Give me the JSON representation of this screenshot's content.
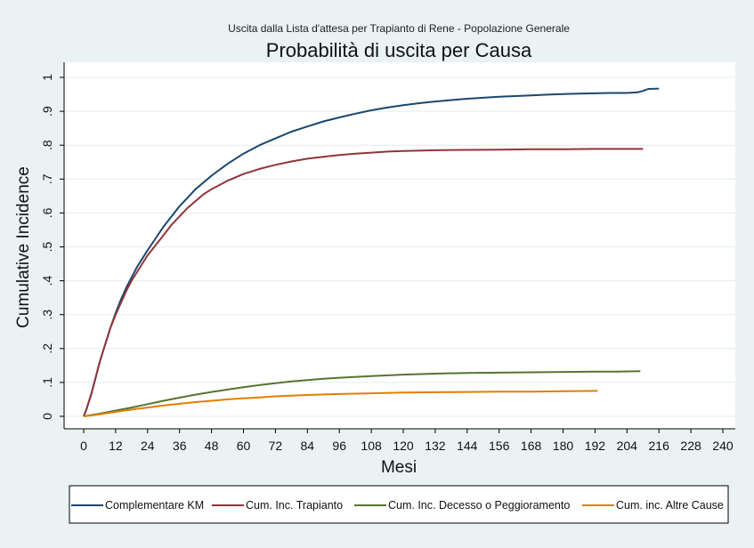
{
  "chart_data": {
    "type": "line",
    "subtitle": "Uscita dalla Lista d'attesa per Trapianto di Rene - Popolazione Generale",
    "title": "Probabilità di uscita per Causa",
    "xlabel": "Mesi",
    "ylabel": "Cumulative Incidence",
    "xlim": [
      0,
      240
    ],
    "ylim": [
      0,
      1
    ],
    "x_ticks": [
      0,
      12,
      24,
      36,
      48,
      60,
      72,
      84,
      96,
      108,
      120,
      132,
      144,
      156,
      168,
      180,
      192,
      204,
      216,
      228,
      240
    ],
    "y_ticks": [
      0,
      0.1,
      0.2,
      0.3,
      0.4,
      0.5,
      0.6,
      0.7,
      0.8,
      0.9,
      1
    ],
    "y_tick_labels": [
      "0",
      ".1",
      ".2",
      ".3",
      ".4",
      ".5",
      ".6",
      ".7",
      ".8",
      ".9",
      "1"
    ],
    "grid": true,
    "legend_position": "bottom",
    "series": [
      {
        "name": "Complementare KM",
        "color": "#1a476f",
        "x": [
          0,
          1,
          2,
          3,
          4,
          5,
          6,
          7,
          8,
          9,
          10,
          12,
          14,
          16,
          18,
          20,
          22,
          24,
          27,
          30,
          33,
          36,
          39,
          42,
          45,
          48,
          54,
          60,
          66,
          72,
          78,
          84,
          90,
          96,
          102,
          108,
          114,
          120,
          126,
          132,
          138,
          144,
          150,
          156,
          162,
          168,
          174,
          180,
          186,
          192,
          198,
          204,
          208,
          210,
          212,
          216
        ],
        "y": [
          0,
          0.02,
          0.045,
          0.07,
          0.1,
          0.13,
          0.16,
          0.185,
          0.21,
          0.235,
          0.26,
          0.305,
          0.345,
          0.38,
          0.41,
          0.44,
          0.465,
          0.49,
          0.525,
          0.56,
          0.59,
          0.62,
          0.645,
          0.67,
          0.69,
          0.71,
          0.745,
          0.775,
          0.8,
          0.82,
          0.84,
          0.855,
          0.87,
          0.882,
          0.893,
          0.903,
          0.911,
          0.918,
          0.924,
          0.929,
          0.933,
          0.937,
          0.94,
          0.943,
          0.945,
          0.947,
          0.949,
          0.951,
          0.952,
          0.953,
          0.954,
          0.954,
          0.956,
          0.96,
          0.966,
          0.967
        ]
      },
      {
        "name": "Cum. Inc. Trapianto",
        "color": "#90353b",
        "x": [
          0,
          1,
          2,
          3,
          4,
          5,
          6,
          7,
          8,
          9,
          10,
          12,
          14,
          16,
          18,
          20,
          22,
          24,
          27,
          30,
          33,
          36,
          39,
          42,
          45,
          48,
          54,
          60,
          66,
          72,
          78,
          84,
          90,
          96,
          102,
          108,
          114,
          120,
          132,
          144,
          156,
          168,
          180,
          192,
          204,
          210
        ],
        "y": [
          0,
          0.02,
          0.045,
          0.07,
          0.1,
          0.13,
          0.16,
          0.185,
          0.21,
          0.235,
          0.26,
          0.3,
          0.335,
          0.37,
          0.4,
          0.425,
          0.45,
          0.475,
          0.505,
          0.535,
          0.565,
          0.59,
          0.615,
          0.635,
          0.655,
          0.67,
          0.695,
          0.715,
          0.73,
          0.742,
          0.752,
          0.76,
          0.766,
          0.771,
          0.775,
          0.778,
          0.781,
          0.783,
          0.785,
          0.786,
          0.787,
          0.788,
          0.788,
          0.789,
          0.789,
          0.789
        ]
      },
      {
        "name": "Cum. Inc. Decesso o Peggioramento",
        "color": "#55752f",
        "x": [
          0,
          6,
          12,
          18,
          24,
          30,
          36,
          42,
          48,
          54,
          60,
          66,
          72,
          78,
          84,
          90,
          96,
          108,
          120,
          132,
          144,
          156,
          168,
          180,
          192,
          200,
          209
        ],
        "y": [
          0,
          0.008,
          0.017,
          0.026,
          0.036,
          0.046,
          0.055,
          0.064,
          0.072,
          0.079,
          0.086,
          0.092,
          0.098,
          0.103,
          0.107,
          0.111,
          0.114,
          0.119,
          0.123,
          0.126,
          0.128,
          0.129,
          0.13,
          0.131,
          0.132,
          0.132,
          0.133
        ]
      },
      {
        "name": "Cum. inc. Altre Cause",
        "color": "#e37e00",
        "x": [
          0,
          6,
          12,
          18,
          24,
          30,
          36,
          42,
          48,
          54,
          60,
          66,
          72,
          84,
          96,
          108,
          120,
          132,
          144,
          156,
          168,
          180,
          193
        ],
        "y": [
          0,
          0.006,
          0.013,
          0.02,
          0.026,
          0.032,
          0.037,
          0.042,
          0.046,
          0.05,
          0.053,
          0.056,
          0.059,
          0.063,
          0.066,
          0.068,
          0.07,
          0.071,
          0.072,
          0.073,
          0.073,
          0.074,
          0.075
        ]
      }
    ]
  }
}
